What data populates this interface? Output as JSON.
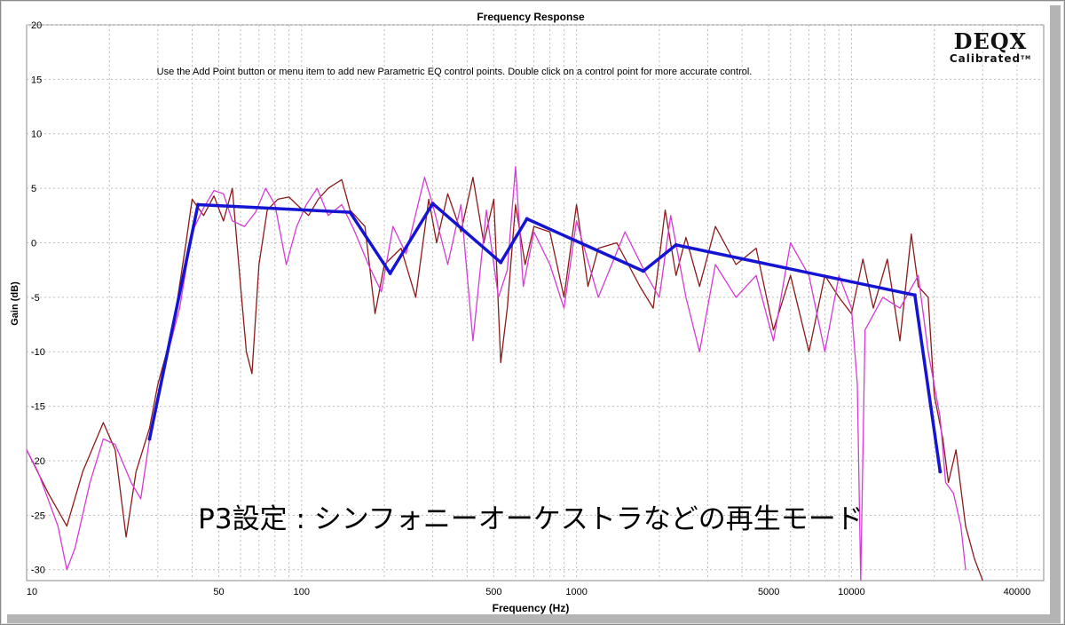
{
  "logo": {
    "name": "DEQX",
    "tagline": "Calibrated",
    "mark": "TM"
  },
  "instruction": "Use the Add Point button or menu item to add new Parametric EQ control points.  Double click on a control point for more accurate control.",
  "overlay_caption": "P3設定 : シンフォニーオーケストラなどの再生モード",
  "colors": {
    "curve_a": "#8b1a1a",
    "curve_b": "#d63bd6",
    "eq": "#1414d2",
    "grid": "#bdbdbd"
  },
  "chart_data": {
    "type": "line",
    "title": "Frequency Response",
    "xlabel": "Frequency (Hz)",
    "ylabel": "Gain (dB)",
    "xscale": "log",
    "xlim": [
      10,
      50000
    ],
    "ylim": [
      -31,
      20
    ],
    "x_ticks": [
      10,
      50,
      100,
      500,
      1000,
      5000,
      10000,
      40000
    ],
    "x_tick_labels": [
      "10",
      "50",
      "100",
      "500",
      "1000",
      "5000",
      "10000",
      "40000"
    ],
    "y_ticks": [
      20,
      15,
      10,
      5,
      0,
      -5,
      -10,
      -15,
      -20,
      -25,
      -30
    ],
    "y_tick_labels": [
      "20",
      "15",
      "10",
      "5",
      "0",
      "-5",
      "-10",
      "-15",
      "-20",
      "-25",
      "-30"
    ],
    "grid": true,
    "series": [
      {
        "color_key": "eq",
        "points": [
          [
            28,
            -18
          ],
          [
            42,
            3.5
          ],
          [
            150,
            2.8
          ],
          [
            210,
            -2.8
          ],
          [
            300,
            3.6
          ],
          [
            530,
            -1.8
          ],
          [
            660,
            2.2
          ],
          [
            1750,
            -2.6
          ],
          [
            2300,
            -0.2
          ],
          [
            17000,
            -4.8
          ],
          [
            21000,
            -21
          ]
        ]
      },
      {
        "color_key": "curve_a",
        "points": [
          [
            10,
            -19
          ],
          [
            12,
            -23
          ],
          [
            14,
            -26
          ],
          [
            16,
            -21
          ],
          [
            19,
            -16.5
          ],
          [
            21,
            -19
          ],
          [
            23,
            -27
          ],
          [
            25,
            -21
          ],
          [
            28,
            -17
          ],
          [
            30,
            -13
          ],
          [
            34,
            -8
          ],
          [
            38,
            0
          ],
          [
            40,
            4
          ],
          [
            44,
            2.5
          ],
          [
            48,
            4.3
          ],
          [
            52,
            2
          ],
          [
            56,
            5
          ],
          [
            60,
            -4
          ],
          [
            63,
            -10
          ],
          [
            66,
            -12
          ],
          [
            70,
            -2
          ],
          [
            75,
            3
          ],
          [
            82,
            4
          ],
          [
            90,
            4.2
          ],
          [
            98,
            3.3
          ],
          [
            106,
            2.5
          ],
          [
            115,
            4
          ],
          [
            125,
            5
          ],
          [
            140,
            5.8
          ],
          [
            150,
            3
          ],
          [
            170,
            1.5
          ],
          [
            185,
            -6.5
          ],
          [
            200,
            -2
          ],
          [
            230,
            -0.5
          ],
          [
            260,
            -5
          ],
          [
            290,
            4
          ],
          [
            310,
            0
          ],
          [
            340,
            4.5
          ],
          [
            380,
            1
          ],
          [
            420,
            6
          ],
          [
            460,
            0
          ],
          [
            500,
            4
          ],
          [
            530,
            -11
          ],
          [
            560,
            -6
          ],
          [
            600,
            3.5
          ],
          [
            650,
            -2
          ],
          [
            700,
            1.5
          ],
          [
            800,
            1
          ],
          [
            900,
            -5
          ],
          [
            1000,
            3.5
          ],
          [
            1100,
            -4
          ],
          [
            1200,
            -0.5
          ],
          [
            1400,
            0
          ],
          [
            1700,
            -4
          ],
          [
            1900,
            -6
          ],
          [
            2100,
            3
          ],
          [
            2300,
            -3
          ],
          [
            2500,
            0.5
          ],
          [
            2800,
            -4
          ],
          [
            3200,
            1.5
          ],
          [
            3800,
            -2
          ],
          [
            4500,
            -0.5
          ],
          [
            5200,
            -8
          ],
          [
            6000,
            -3
          ],
          [
            7000,
            -10
          ],
          [
            8000,
            -3
          ],
          [
            9000,
            -5
          ],
          [
            10000,
            -6.5
          ],
          [
            11000,
            -1.5
          ],
          [
            12000,
            -6
          ],
          [
            13500,
            -1.5
          ],
          [
            15000,
            -9
          ],
          [
            16500,
            0.8
          ],
          [
            17500,
            -4
          ],
          [
            19000,
            -5
          ],
          [
            20000,
            -14
          ],
          [
            21500,
            -18
          ],
          [
            22500,
            -22
          ],
          [
            24000,
            -19
          ],
          [
            26000,
            -26
          ],
          [
            28000,
            -29
          ],
          [
            30000,
            -31
          ]
        ]
      },
      {
        "color_key": "curve_b",
        "points": [
          [
            10,
            -19
          ],
          [
            11,
            -21
          ],
          [
            13,
            -26
          ],
          [
            14,
            -30
          ],
          [
            15,
            -28
          ],
          [
            17,
            -22
          ],
          [
            19,
            -18
          ],
          [
            21,
            -18.5
          ],
          [
            24,
            -22
          ],
          [
            26,
            -23.5
          ],
          [
            28,
            -18
          ],
          [
            32,
            -11
          ],
          [
            36,
            -6
          ],
          [
            40,
            1
          ],
          [
            44,
            3.2
          ],
          [
            48,
            4.8
          ],
          [
            52,
            4.5
          ],
          [
            56,
            2
          ],
          [
            62,
            1.5
          ],
          [
            68,
            2.8
          ],
          [
            74,
            5
          ],
          [
            80,
            3.5
          ],
          [
            88,
            -2
          ],
          [
            96,
            1.5
          ],
          [
            104,
            3.5
          ],
          [
            114,
            5
          ],
          [
            125,
            2.5
          ],
          [
            140,
            3.5
          ],
          [
            155,
            1.2
          ],
          [
            175,
            -2
          ],
          [
            195,
            -4.5
          ],
          [
            215,
            1.5
          ],
          [
            240,
            -1
          ],
          [
            280,
            6
          ],
          [
            300,
            3.5
          ],
          [
            340,
            -2
          ],
          [
            380,
            3.5
          ],
          [
            420,
            -9
          ],
          [
            470,
            3
          ],
          [
            520,
            -5
          ],
          [
            560,
            -2.5
          ],
          [
            600,
            7
          ],
          [
            640,
            -4
          ],
          [
            700,
            1
          ],
          [
            800,
            -2
          ],
          [
            900,
            -6
          ],
          [
            1000,
            2
          ],
          [
            1200,
            -5
          ],
          [
            1500,
            1
          ],
          [
            1800,
            -3
          ],
          [
            2000,
            -5
          ],
          [
            2200,
            2.5
          ],
          [
            2500,
            -5
          ],
          [
            2800,
            -10
          ],
          [
            3200,
            -2
          ],
          [
            3800,
            -5
          ],
          [
            4500,
            -3
          ],
          [
            5200,
            -9
          ],
          [
            6000,
            0
          ],
          [
            7000,
            -3
          ],
          [
            8000,
            -10
          ],
          [
            9000,
            -3
          ],
          [
            10000,
            -6
          ],
          [
            10500,
            -13
          ],
          [
            10800,
            -31
          ],
          [
            11200,
            -8
          ],
          [
            13000,
            -5
          ],
          [
            15000,
            -6
          ],
          [
            17500,
            -3
          ],
          [
            19000,
            -10
          ],
          [
            21000,
            -16
          ],
          [
            22000,
            -22
          ],
          [
            23500,
            -23
          ],
          [
            25000,
            -26
          ],
          [
            26000,
            -30
          ]
        ]
      }
    ]
  }
}
